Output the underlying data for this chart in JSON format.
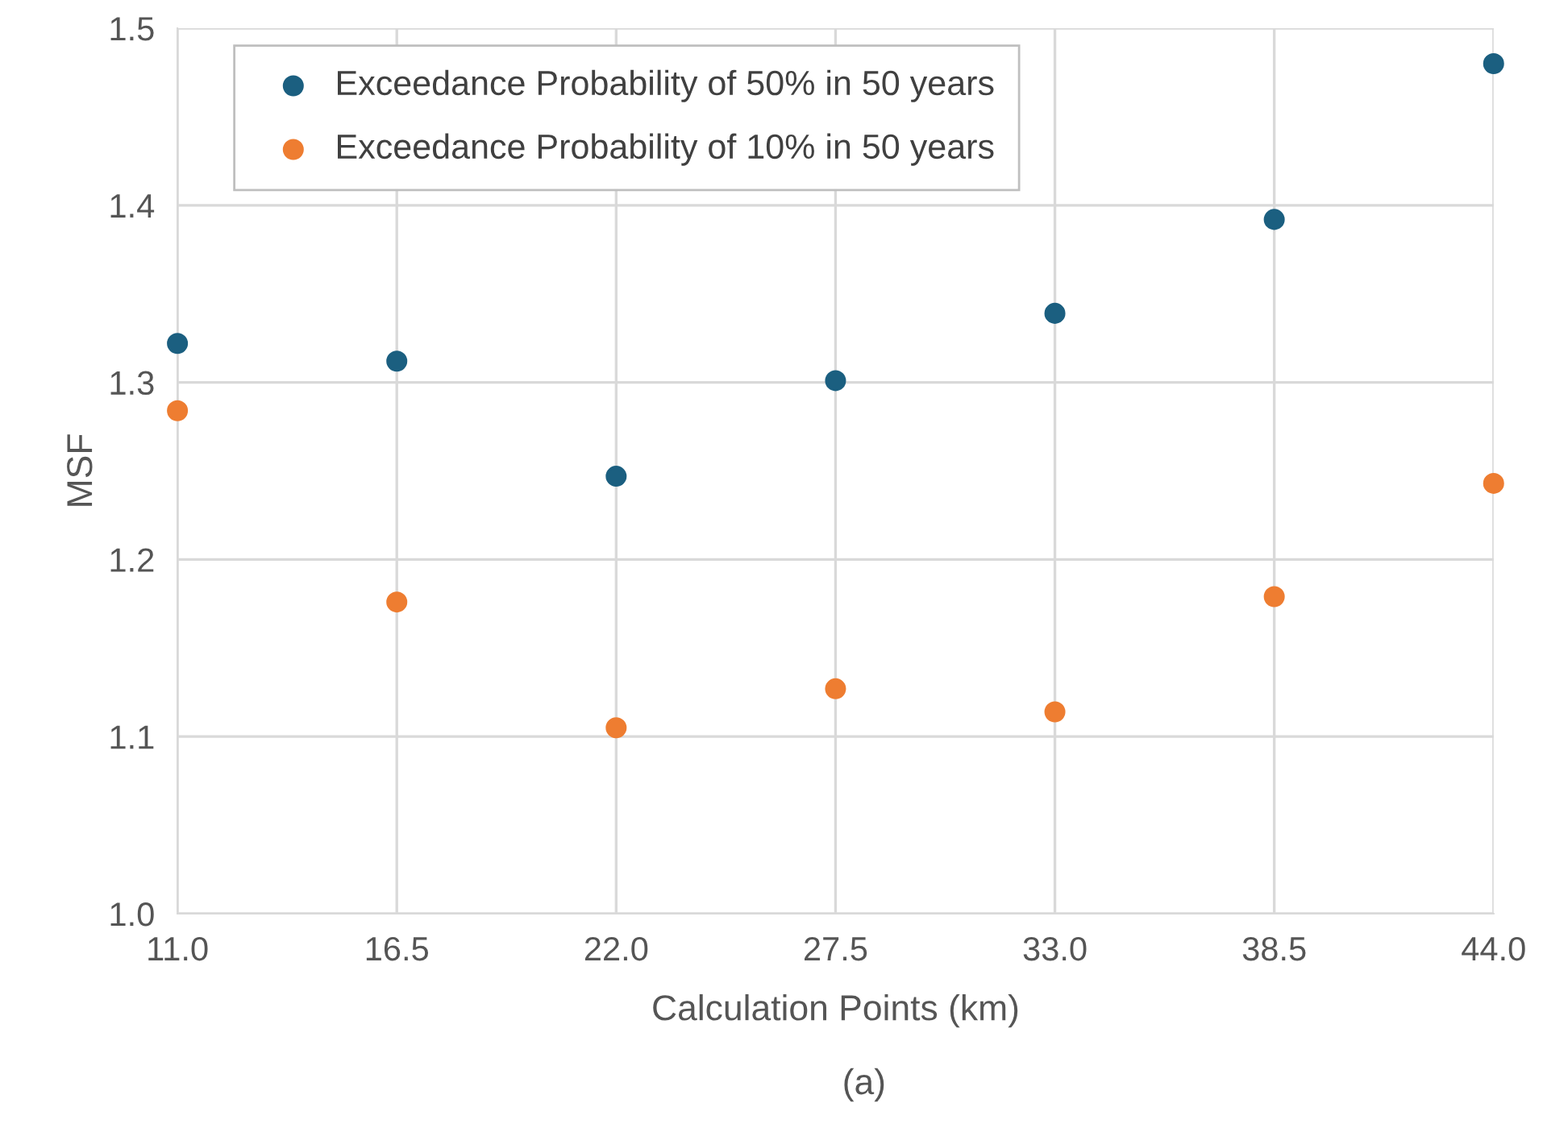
{
  "chart_data": {
    "type": "scatter",
    "xlabel": "Calculation Points (km)",
    "ylabel": "MSF",
    "annotations": [
      "(a)"
    ],
    "x": [
      11.0,
      16.5,
      22.0,
      27.5,
      33.0,
      38.5,
      44.0
    ],
    "series": [
      {
        "name": "Exceedance Probability of 50% in 50 years",
        "color": "#1b5f80",
        "values": [
          1.322,
          1.312,
          1.247,
          1.301,
          1.339,
          1.392,
          1.48
        ]
      },
      {
        "name": "Exceedance Probability of 10% in 50 years",
        "color": "#ee7d31",
        "values": [
          1.284,
          1.176,
          1.105,
          1.127,
          1.114,
          1.179,
          1.243
        ]
      }
    ],
    "xlim": [
      11.0,
      44.0
    ],
    "xticks": [
      {
        "value": 11.0,
        "label": "11.0"
      },
      {
        "value": 16.5,
        "label": "16.5"
      },
      {
        "value": 22.0,
        "label": "22.0"
      },
      {
        "value": 27.5,
        "label": "27.5"
      },
      {
        "value": 33.0,
        "label": "33.0"
      },
      {
        "value": 38.5,
        "label": "38.5"
      },
      {
        "value": 44.0,
        "label": "44.0"
      }
    ],
    "ylim": [
      1.0,
      1.5
    ],
    "yticks": [
      {
        "value": 1.0,
        "label": "1.0"
      },
      1.1,
      1.2,
      1.3,
      1.4,
      1.5
    ],
    "grid": true,
    "legend": "top left",
    "marker": "circle"
  }
}
